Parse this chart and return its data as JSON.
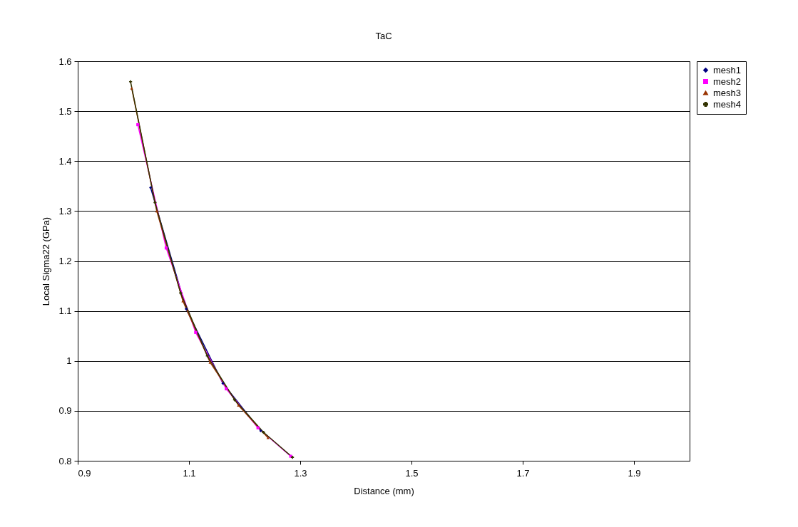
{
  "chart_data": {
    "type": "line",
    "title": "TaC",
    "xlabel": "Distance (mm)",
    "ylabel": "Local Sigma22 (GPa)",
    "xlim": [
      0.9,
      2.0
    ],
    "xticks": [
      0.9,
      1.1,
      1.3,
      1.5,
      1.7,
      1.9
    ],
    "ylim": [
      0.8,
      1.6
    ],
    "yticks": [
      0.8,
      0.9,
      1,
      1.1,
      1.2,
      1.3,
      1.4,
      1.5,
      1.6
    ],
    "grid": "y",
    "legend": "right",
    "line_style": "solid",
    "series": [
      {
        "name": "mesh1",
        "color": "#000080",
        "marker": "diamond",
        "x": [
          1.031,
          1.095,
          1.161,
          1.229
        ],
        "values": [
          1.347,
          1.104,
          0.955,
          0.86
        ]
      },
      {
        "name": "mesh2",
        "color": "#ff00ff",
        "marker": "square",
        "x": [
          1.008,
          1.059,
          1.112,
          1.167,
          1.224,
          1.283
        ],
        "values": [
          1.473,
          1.226,
          1.057,
          0.944,
          0.866,
          0.809
        ]
      },
      {
        "name": "mesh3",
        "color": "#993300",
        "marker": "triangle",
        "x": [
          0.997,
          1.042,
          1.089,
          1.138,
          1.189,
          1.242
        ],
        "values": [
          1.546,
          1.3,
          1.12,
          0.997,
          0.911,
          0.846
        ]
      },
      {
        "name": "mesh4",
        "color": "#333300",
        "marker": "cross",
        "x": [
          0.995,
          1.039,
          1.085,
          1.133,
          1.182,
          1.234,
          1.286
        ],
        "values": [
          1.559,
          1.317,
          1.136,
          1.01,
          0.922,
          0.857,
          0.807
        ]
      }
    ]
  }
}
